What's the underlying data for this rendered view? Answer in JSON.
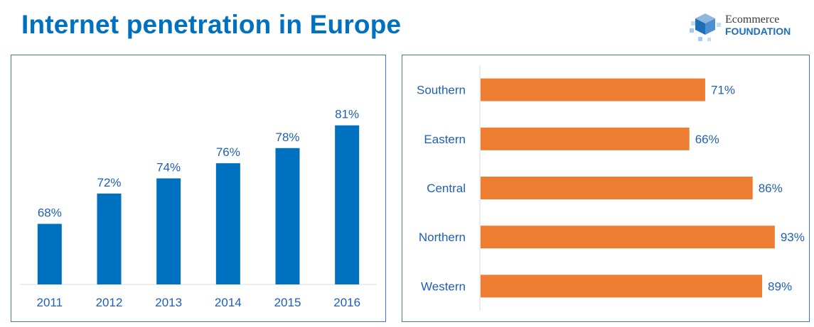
{
  "header": {
    "title": "Internet penetration in Europe",
    "logo_line1": "Ecommerce",
    "logo_line2": "FOUNDATION"
  },
  "colors": {
    "title": "#0070c0",
    "bar_blue": "#0070c0",
    "bar_orange": "#ed7d31",
    "label": "#1f5fb4",
    "panel_border": "#3d78c4"
  },
  "chart_data": [
    {
      "type": "bar",
      "orientation": "vertical",
      "categories": [
        "2011",
        "2012",
        "2013",
        "2014",
        "2015",
        "2016"
      ],
      "values": [
        68,
        72,
        74,
        76,
        78,
        81
      ],
      "value_labels": [
        "68%",
        "72%",
        "74%",
        "76%",
        "78%",
        "81%"
      ],
      "ylim": [
        60,
        85
      ],
      "grid": false,
      "legend": "none"
    },
    {
      "type": "bar",
      "orientation": "horizontal",
      "categories": [
        "Southern",
        "Eastern",
        "Central",
        "Northern",
        "Western"
      ],
      "values": [
        71,
        66,
        86,
        93,
        89
      ],
      "value_labels": [
        "71%",
        "66%",
        "86%",
        "93%",
        "89%"
      ],
      "xlim": [
        0,
        93
      ],
      "grid": false,
      "legend": "none"
    }
  ]
}
